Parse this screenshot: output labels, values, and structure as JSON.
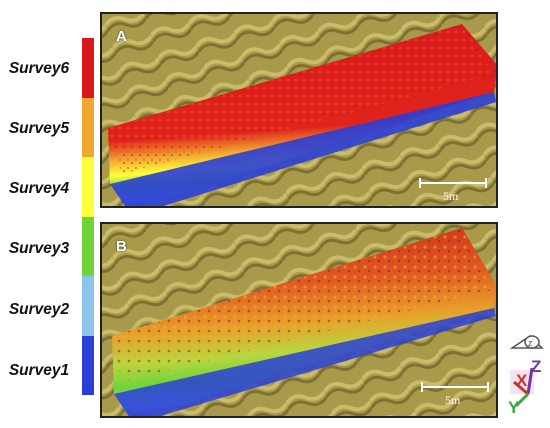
{
  "legend": {
    "items": [
      {
        "label": "Survey6",
        "color": "#d7191c"
      },
      {
        "label": "Survey5",
        "color": "#f0a830"
      },
      {
        "label": "Survey4",
        "color": "#ffff3a"
      },
      {
        "label": "Survey3",
        "color": "#6fd43a"
      },
      {
        "label": "Survey2",
        "color": "#8cc4ea"
      },
      {
        "label": "Survey1",
        "color": "#2a3fd6"
      }
    ]
  },
  "panels": [
    {
      "letter": "A",
      "scale_label": "5m"
    },
    {
      "letter": "B",
      "scale_label": "5m"
    }
  ],
  "axes": {
    "x": "X",
    "y": "Y",
    "z": "Z",
    "icon": "view-orientation-icon"
  },
  "colors": {
    "terrain": "#a89a4a",
    "terrain_dark": "#7d7033"
  }
}
